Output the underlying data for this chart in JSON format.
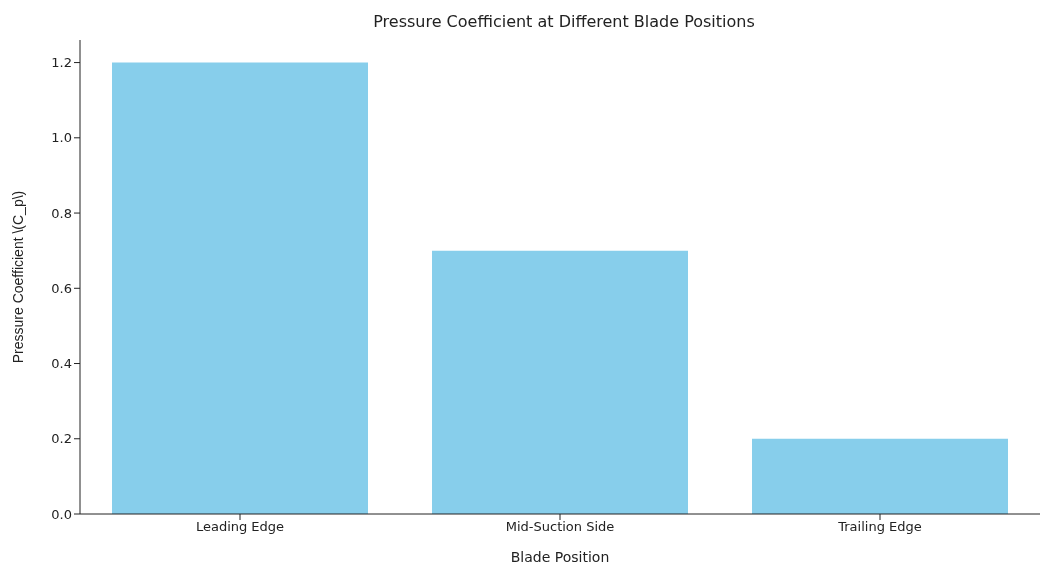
{
  "chart_data": {
    "type": "bar",
    "title": "Pressure Coefficient at Different Blade Positions",
    "xlabel": "Blade Position",
    "ylabel": "Pressure Coefficient \\(C_p\\)",
    "categories": [
      "Leading Edge",
      "Mid-Suction Side",
      "Trailing Edge"
    ],
    "values": [
      1.2,
      0.7,
      0.2
    ],
    "color": "#87ceeb",
    "ylim": [
      0,
      1.26
    ],
    "yticks": [
      {
        "value": 0,
        "label": "0.0"
      },
      0.2,
      0.4,
      0.6,
      0.8,
      {
        "value": 1,
        "label": "1.0"
      },
      1.2
    ],
    "grid": false,
    "legend": false
  }
}
